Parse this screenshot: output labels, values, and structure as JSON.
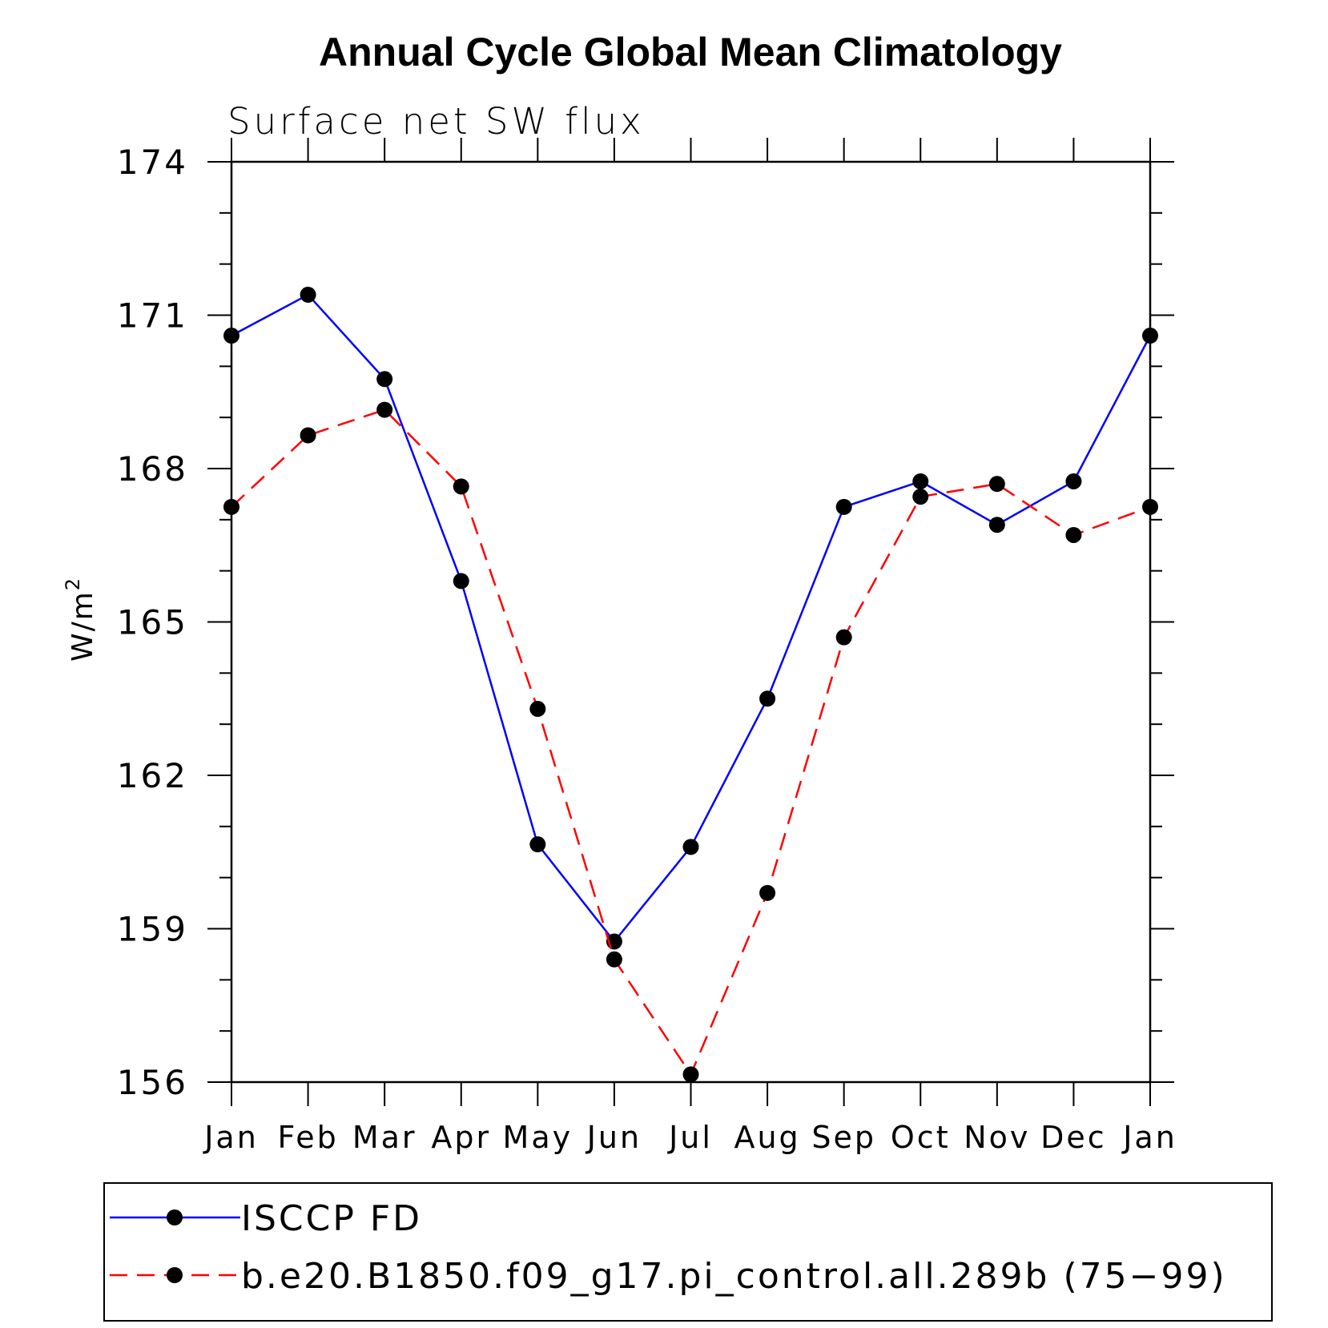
{
  "chart_data": {
    "type": "line",
    "title": "Annual Cycle Global Mean Climatology",
    "subtitle": "Surface net SW flux",
    "ylabel": "W/m",
    "ylabel_sup": "2",
    "xlabel": "",
    "categories": [
      "Jan",
      "Feb",
      "Mar",
      "Apr",
      "May",
      "Jun",
      "Jul",
      "Aug",
      "Sep",
      "Oct",
      "Nov",
      "Dec",
      "Jan"
    ],
    "ylim": [
      156,
      174
    ],
    "yticks": [
      156,
      159,
      162,
      165,
      168,
      171,
      174
    ],
    "ytick_labels": [
      "156",
      "159",
      "162",
      "165",
      "168",
      "171",
      "174"
    ],
    "legend_position": "bottom",
    "grid": false,
    "series": [
      {
        "name": "ISCCP FD",
        "color": "#0000ff",
        "dash": "solid",
        "values": [
          170.6,
          171.4,
          169.75,
          165.8,
          160.65,
          158.75,
          160.6,
          163.5,
          167.25,
          167.75,
          166.9,
          167.75,
          170.6
        ]
      },
      {
        "name": "b.e20.B1850.f09_g17.pi_control.all.289b (75−99)",
        "color": "#ff0000",
        "dash": "dashed",
        "values": [
          167.25,
          168.65,
          169.15,
          167.65,
          163.3,
          158.4,
          156.15,
          159.7,
          164.7,
          167.45,
          167.7,
          166.7,
          167.25
        ]
      }
    ]
  }
}
